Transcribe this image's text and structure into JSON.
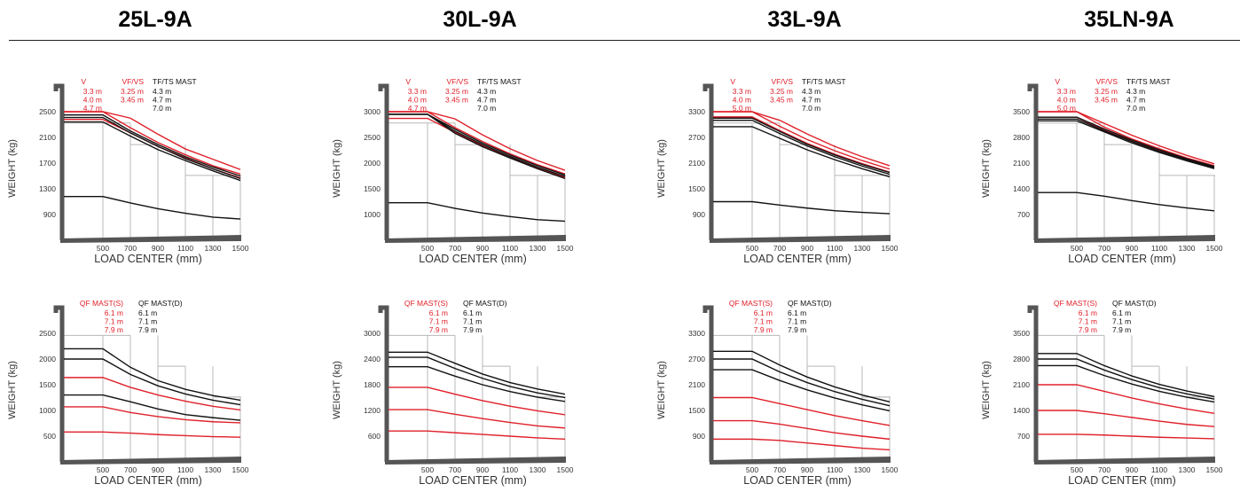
{
  "colors": {
    "red": "#e0202a",
    "black": "#111111",
    "grid": "#b8b8b8",
    "axis": "#555555"
  },
  "models": [
    "25L-9A",
    "30L-9A",
    "33L-9A",
    "35LN-9A"
  ],
  "chart_data": [
    {
      "type": "line",
      "model": "25L-9A",
      "row": "top",
      "xlabel": "LOAD CENTER (mm)",
      "ylabel": "WEIGHT (kg)",
      "x": [
        500,
        700,
        900,
        1100,
        1300,
        1500
      ],
      "xticks": [
        500,
        700,
        900,
        1100,
        1300,
        1500
      ],
      "yticks": [
        900,
        1300,
        1700,
        2100,
        2500
      ],
      "ylim": [
        500,
        2900
      ],
      "legend_columns": [
        {
          "header": "V",
          "color": "#e0202a",
          "entries": [
            "3.3 m",
            "4.0 m",
            "4.7 m"
          ]
        },
        {
          "header": "VF/VS",
          "color": "#e0202a",
          "entries": [
            "3.25 m",
            "3.45 m"
          ]
        },
        {
          "header": "TF/TS MAST",
          "color": "#111111",
          "entries": [
            "4.3 m",
            "4.7 m",
            "7.0 m"
          ]
        }
      ],
      "series": [
        {
          "color": "#e0202a",
          "values": [
            2500,
            2400,
            2150,
            1920,
            1760,
            1600
          ]
        },
        {
          "color": "#e0202a",
          "values": [
            2500,
            2250,
            2020,
            1830,
            1660,
            1530
          ]
        },
        {
          "color": "#e0202a",
          "values": [
            2380,
            2170,
            1960,
            1780,
            1610,
            1470
          ]
        },
        {
          "color": "#111111",
          "values": [
            2450,
            2200,
            1990,
            1800,
            1640,
            1500
          ]
        },
        {
          "color": "#111111",
          "values": [
            2410,
            2170,
            1960,
            1770,
            1610,
            1460
          ]
        },
        {
          "color": "#111111",
          "values": [
            2340,
            2120,
            1910,
            1740,
            1580,
            1430
          ]
        },
        {
          "color": "#111111",
          "values": [
            1180,
            1080,
            990,
            920,
            860,
            830
          ]
        }
      ]
    },
    {
      "type": "line",
      "model": "25L-9A",
      "row": "bottom",
      "xlabel": "LOAD CENTER (mm)",
      "ylabel": "WEIGHT (kg)",
      "x": [
        500,
        700,
        900,
        1100,
        1300,
        1500
      ],
      "xticks": [
        500,
        700,
        900,
        1100,
        1300,
        1500
      ],
      "yticks": [
        500,
        1000,
        1500,
        2000,
        2500
      ],
      "ylim": [
        0,
        3000
      ],
      "legend_columns": [
        {
          "header": "QF MAST(S)",
          "color": "#e0202a",
          "entries": [
            "6.1 m",
            "7.1 m",
            "7.9 m"
          ]
        },
        {
          "header": "QF MAST(D)",
          "color": "#111111",
          "entries": [
            "6.1 m",
            "7.1 m",
            "7.9 m"
          ]
        }
      ],
      "series": [
        {
          "color": "#111111",
          "values": [
            2200,
            1840,
            1580,
            1410,
            1290,
            1200
          ]
        },
        {
          "color": "#111111",
          "values": [
            2000,
            1700,
            1480,
            1320,
            1200,
            1110
          ]
        },
        {
          "color": "#111111",
          "values": [
            1300,
            1170,
            1030,
            920,
            860,
            810
          ]
        },
        {
          "color": "#e0202a",
          "values": [
            1640,
            1450,
            1300,
            1180,
            1080,
            1010
          ]
        },
        {
          "color": "#e0202a",
          "values": [
            1070,
            960,
            880,
            820,
            780,
            760
          ]
        },
        {
          "color": "#e0202a",
          "values": [
            580,
            560,
            530,
            510,
            490,
            480
          ]
        }
      ]
    },
    {
      "type": "line",
      "model": "30L-9A",
      "row": "top",
      "xlabel": "LOAD CENTER (mm)",
      "ylabel": "WEIGHT (kg)",
      "x": [
        500,
        700,
        900,
        1100,
        1300,
        1500
      ],
      "xticks": [
        500,
        700,
        900,
        1100,
        1300,
        1500
      ],
      "yticks": [
        1000,
        1500,
        2000,
        2500,
        3000
      ],
      "ylim": [
        500,
        3500
      ],
      "legend_columns": [
        {
          "header": "V",
          "color": "#e0202a",
          "entries": [
            "3.3 m",
            "4.0 m",
            "4.7 m"
          ]
        },
        {
          "header": "VF/VS",
          "color": "#e0202a",
          "entries": [
            "3.25 m",
            "3.45 m"
          ]
        },
        {
          "header": "TF/TS MAST",
          "color": "#111111",
          "entries": [
            "4.3 m",
            "4.7 m",
            "7.0 m"
          ]
        }
      ],
      "series": [
        {
          "color": "#e0202a",
          "values": [
            3000,
            2860,
            2550,
            2280,
            2050,
            1860
          ]
        },
        {
          "color": "#e0202a",
          "values": [
            3000,
            2690,
            2420,
            2180,
            1970,
            1790
          ]
        },
        {
          "color": "#e0202a",
          "values": [
            2870,
            2600,
            2340,
            2120,
            1910,
            1720
          ]
        },
        {
          "color": "#111111",
          "values": [
            2950,
            2660,
            2390,
            2160,
            1950,
            1770
          ]
        },
        {
          "color": "#111111",
          "values": [
            2950,
            2620,
            2360,
            2130,
            1920,
            1740
          ]
        },
        {
          "color": "#111111",
          "values": [
            2950,
            2580,
            2320,
            2100,
            1890,
            1700
          ]
        },
        {
          "color": "#111111",
          "values": [
            1230,
            1120,
            1030,
            960,
            900,
            870
          ]
        }
      ]
    },
    {
      "type": "line",
      "model": "30L-9A",
      "row": "bottom",
      "xlabel": "LOAD CENTER (mm)",
      "ylabel": "WEIGHT (kg)",
      "x": [
        500,
        700,
        900,
        1100,
        1300,
        1500
      ],
      "xticks": [
        500,
        700,
        900,
        1100,
        1300,
        1500
      ],
      "yticks": [
        600,
        1200,
        1800,
        2400,
        3000
      ],
      "ylim": [
        0,
        3600
      ],
      "legend_columns": [
        {
          "header": "QF MAST(S)",
          "color": "#e0202a",
          "entries": [
            "6.1 m",
            "7.1 m",
            "7.9 m"
          ]
        },
        {
          "header": "QF MAST(D)",
          "color": "#111111",
          "entries": [
            "6.1 m",
            "7.1 m",
            "7.9 m"
          ]
        }
      ],
      "series": [
        {
          "color": "#111111",
          "values": [
            2560,
            2300,
            2050,
            1850,
            1700,
            1580
          ]
        },
        {
          "color": "#111111",
          "values": [
            2440,
            2180,
            1950,
            1760,
            1610,
            1500
          ]
        },
        {
          "color": "#111111",
          "values": [
            2220,
            2000,
            1800,
            1640,
            1510,
            1410
          ]
        },
        {
          "color": "#e0202a",
          "values": [
            1740,
            1580,
            1430,
            1300,
            1190,
            1100
          ]
        },
        {
          "color": "#e0202a",
          "values": [
            1220,
            1110,
            1010,
            920,
            840,
            790
          ]
        },
        {
          "color": "#e0202a",
          "values": [
            720,
            680,
            640,
            600,
            560,
            530
          ]
        }
      ]
    },
    {
      "type": "line",
      "model": "33L-9A",
      "row": "top",
      "xlabel": "LOAD CENTER (mm)",
      "ylabel": "WEIGHT (kg)",
      "x": [
        500,
        700,
        900,
        1100,
        1300,
        1500
      ],
      "xticks": [
        500,
        700,
        900,
        1100,
        1300,
        1500
      ],
      "yticks": [
        900,
        1500,
        2100,
        2700,
        3300
      ],
      "ylim": [
        300,
        3900
      ],
      "legend_columns": [
        {
          "header": "V",
          "color": "#e0202a",
          "entries": [
            "3.3 m",
            "4.0 m",
            "5.0 m"
          ]
        },
        {
          "header": "VF/VS",
          "color": "#e0202a",
          "entries": [
            "3.25 m",
            "3.45 m"
          ]
        },
        {
          "header": "TF/TS MAST",
          "color": "#111111",
          "entries": [
            "4.3 m",
            "4.7 m",
            "7.0 m"
          ]
        }
      ],
      "series": [
        {
          "color": "#e0202a",
          "values": [
            3300,
            3100,
            2780,
            2490,
            2250,
            2040
          ]
        },
        {
          "color": "#e0202a",
          "values": [
            3300,
            2960,
            2650,
            2390,
            2160,
            1960
          ]
        },
        {
          "color": "#e0202a",
          "values": [
            3180,
            2860,
            2560,
            2310,
            2090,
            1890
          ]
        },
        {
          "color": "#111111",
          "values": [
            3150,
            2840,
            2540,
            2290,
            2070,
            1880
          ]
        },
        {
          "color": "#111111",
          "values": [
            3100,
            2790,
            2500,
            2250,
            2030,
            1840
          ]
        },
        {
          "color": "#111111",
          "values": [
            2950,
            2680,
            2410,
            2180,
            1970,
            1780
          ]
        },
        {
          "color": "#111111",
          "values": [
            1200,
            1120,
            1050,
            990,
            950,
            920
          ]
        }
      ]
    },
    {
      "type": "line",
      "model": "33L-9A",
      "row": "bottom",
      "xlabel": "LOAD CENTER (mm)",
      "ylabel": "WEIGHT (kg)",
      "x": [
        500,
        700,
        900,
        1100,
        1300,
        1500
      ],
      "xticks": [
        500,
        700,
        900,
        1100,
        1300,
        1500
      ],
      "yticks": [
        900,
        1500,
        2100,
        2700,
        3300
      ],
      "ylim": [
        300,
        3900
      ],
      "legend_columns": [
        {
          "header": "QF MAST(S)",
          "color": "#e0202a",
          "entries": [
            "6.1 m",
            "7.1 m",
            "7.9 m"
          ]
        },
        {
          "header": "QF MAST(D)",
          "color": "#111111",
          "entries": [
            "6.1 m",
            "7.1 m",
            "7.9 m"
          ]
        }
      ],
      "series": [
        {
          "color": "#111111",
          "values": [
            2880,
            2560,
            2280,
            2050,
            1860,
            1700
          ]
        },
        {
          "color": "#111111",
          "values": [
            2700,
            2400,
            2150,
            1940,
            1760,
            1610
          ]
        },
        {
          "color": "#111111",
          "values": [
            2450,
            2200,
            1980,
            1790,
            1630,
            1490
          ]
        },
        {
          "color": "#e0202a",
          "values": [
            1800,
            1660,
            1520,
            1380,
            1260,
            1150
          ]
        },
        {
          "color": "#e0202a",
          "values": [
            1260,
            1180,
            1080,
            980,
            900,
            830
          ]
        },
        {
          "color": "#e0202a",
          "values": [
            830,
            800,
            740,
            680,
            620,
            580
          ]
        }
      ]
    },
    {
      "type": "line",
      "model": "35LN-9A",
      "row": "top",
      "xlabel": "LOAD CENTER (mm)",
      "ylabel": "WEIGHT (kg)",
      "x": [
        500,
        700,
        900,
        1100,
        1300,
        1500
      ],
      "xticks": [
        500,
        700,
        900,
        1100,
        1300,
        1500
      ],
      "yticks": [
        700,
        1400,
        2100,
        2800,
        3500
      ],
      "ylim": [
        0,
        4200
      ],
      "legend_columns": [
        {
          "header": "V",
          "color": "#e0202a",
          "entries": [
            "3.3 m",
            "4.0 m",
            "5.0 m"
          ]
        },
        {
          "header": "VF/VS",
          "color": "#e0202a",
          "entries": [
            "3.25 m",
            "3.45 m"
          ]
        },
        {
          "header": "TF/TS MAST",
          "color": "#111111",
          "entries": [
            "4.3 m",
            "4.7 m",
            "7.0 m"
          ]
        }
      ],
      "series": [
        {
          "color": "#e0202a",
          "values": [
            3500,
            3180,
            2860,
            2570,
            2310,
            2080
          ]
        },
        {
          "color": "#e0202a",
          "values": [
            3500,
            3080,
            2760,
            2490,
            2240,
            2030
          ]
        },
        {
          "color": "#e0202a",
          "values": [
            3350,
            3000,
            2700,
            2430,
            2200,
            1990
          ]
        },
        {
          "color": "#111111",
          "values": [
            3350,
            3030,
            2730,
            2460,
            2220,
            2010
          ]
        },
        {
          "color": "#111111",
          "values": [
            3300,
            2980,
            2690,
            2420,
            2190,
            1980
          ]
        },
        {
          "color": "#111111",
          "values": [
            3250,
            2950,
            2650,
            2390,
            2160,
            1950
          ]
        },
        {
          "color": "#111111",
          "values": [
            1300,
            1200,
            1080,
            970,
            880,
            800
          ]
        }
      ]
    },
    {
      "type": "line",
      "model": "35LN-9A",
      "row": "bottom",
      "xlabel": "LOAD CENTER (mm)",
      "ylabel": "WEIGHT (kg)",
      "x": [
        500,
        700,
        900,
        1100,
        1300,
        1500
      ],
      "xticks": [
        500,
        700,
        900,
        1100,
        1300,
        1500
      ],
      "yticks": [
        700,
        1400,
        2100,
        2800,
        3500
      ],
      "ylim": [
        0,
        4200
      ],
      "legend_columns": [
        {
          "header": "QF MAST(S)",
          "color": "#e0202a",
          "entries": [
            "6.1 m",
            "7.1 m",
            "7.9 m"
          ]
        },
        {
          "header": "QF MAST(D)",
          "color": "#111111",
          "entries": [
            "6.1 m",
            "7.1 m",
            "7.9 m"
          ]
        }
      ],
      "series": [
        {
          "color": "#111111",
          "values": [
            2950,
            2620,
            2340,
            2110,
            1930,
            1780
          ]
        },
        {
          "color": "#111111",
          "values": [
            2800,
            2500,
            2240,
            2020,
            1850,
            1710
          ]
        },
        {
          "color": "#111111",
          "values": [
            2620,
            2350,
            2120,
            1920,
            1760,
            1630
          ]
        },
        {
          "color": "#e0202a",
          "values": [
            2100,
            1920,
            1740,
            1580,
            1440,
            1320
          ]
        },
        {
          "color": "#e0202a",
          "values": [
            1400,
            1310,
            1210,
            1110,
            1020,
            960
          ]
        },
        {
          "color": "#e0202a",
          "values": [
            750,
            730,
            700,
            670,
            650,
            630
          ]
        }
      ]
    }
  ]
}
